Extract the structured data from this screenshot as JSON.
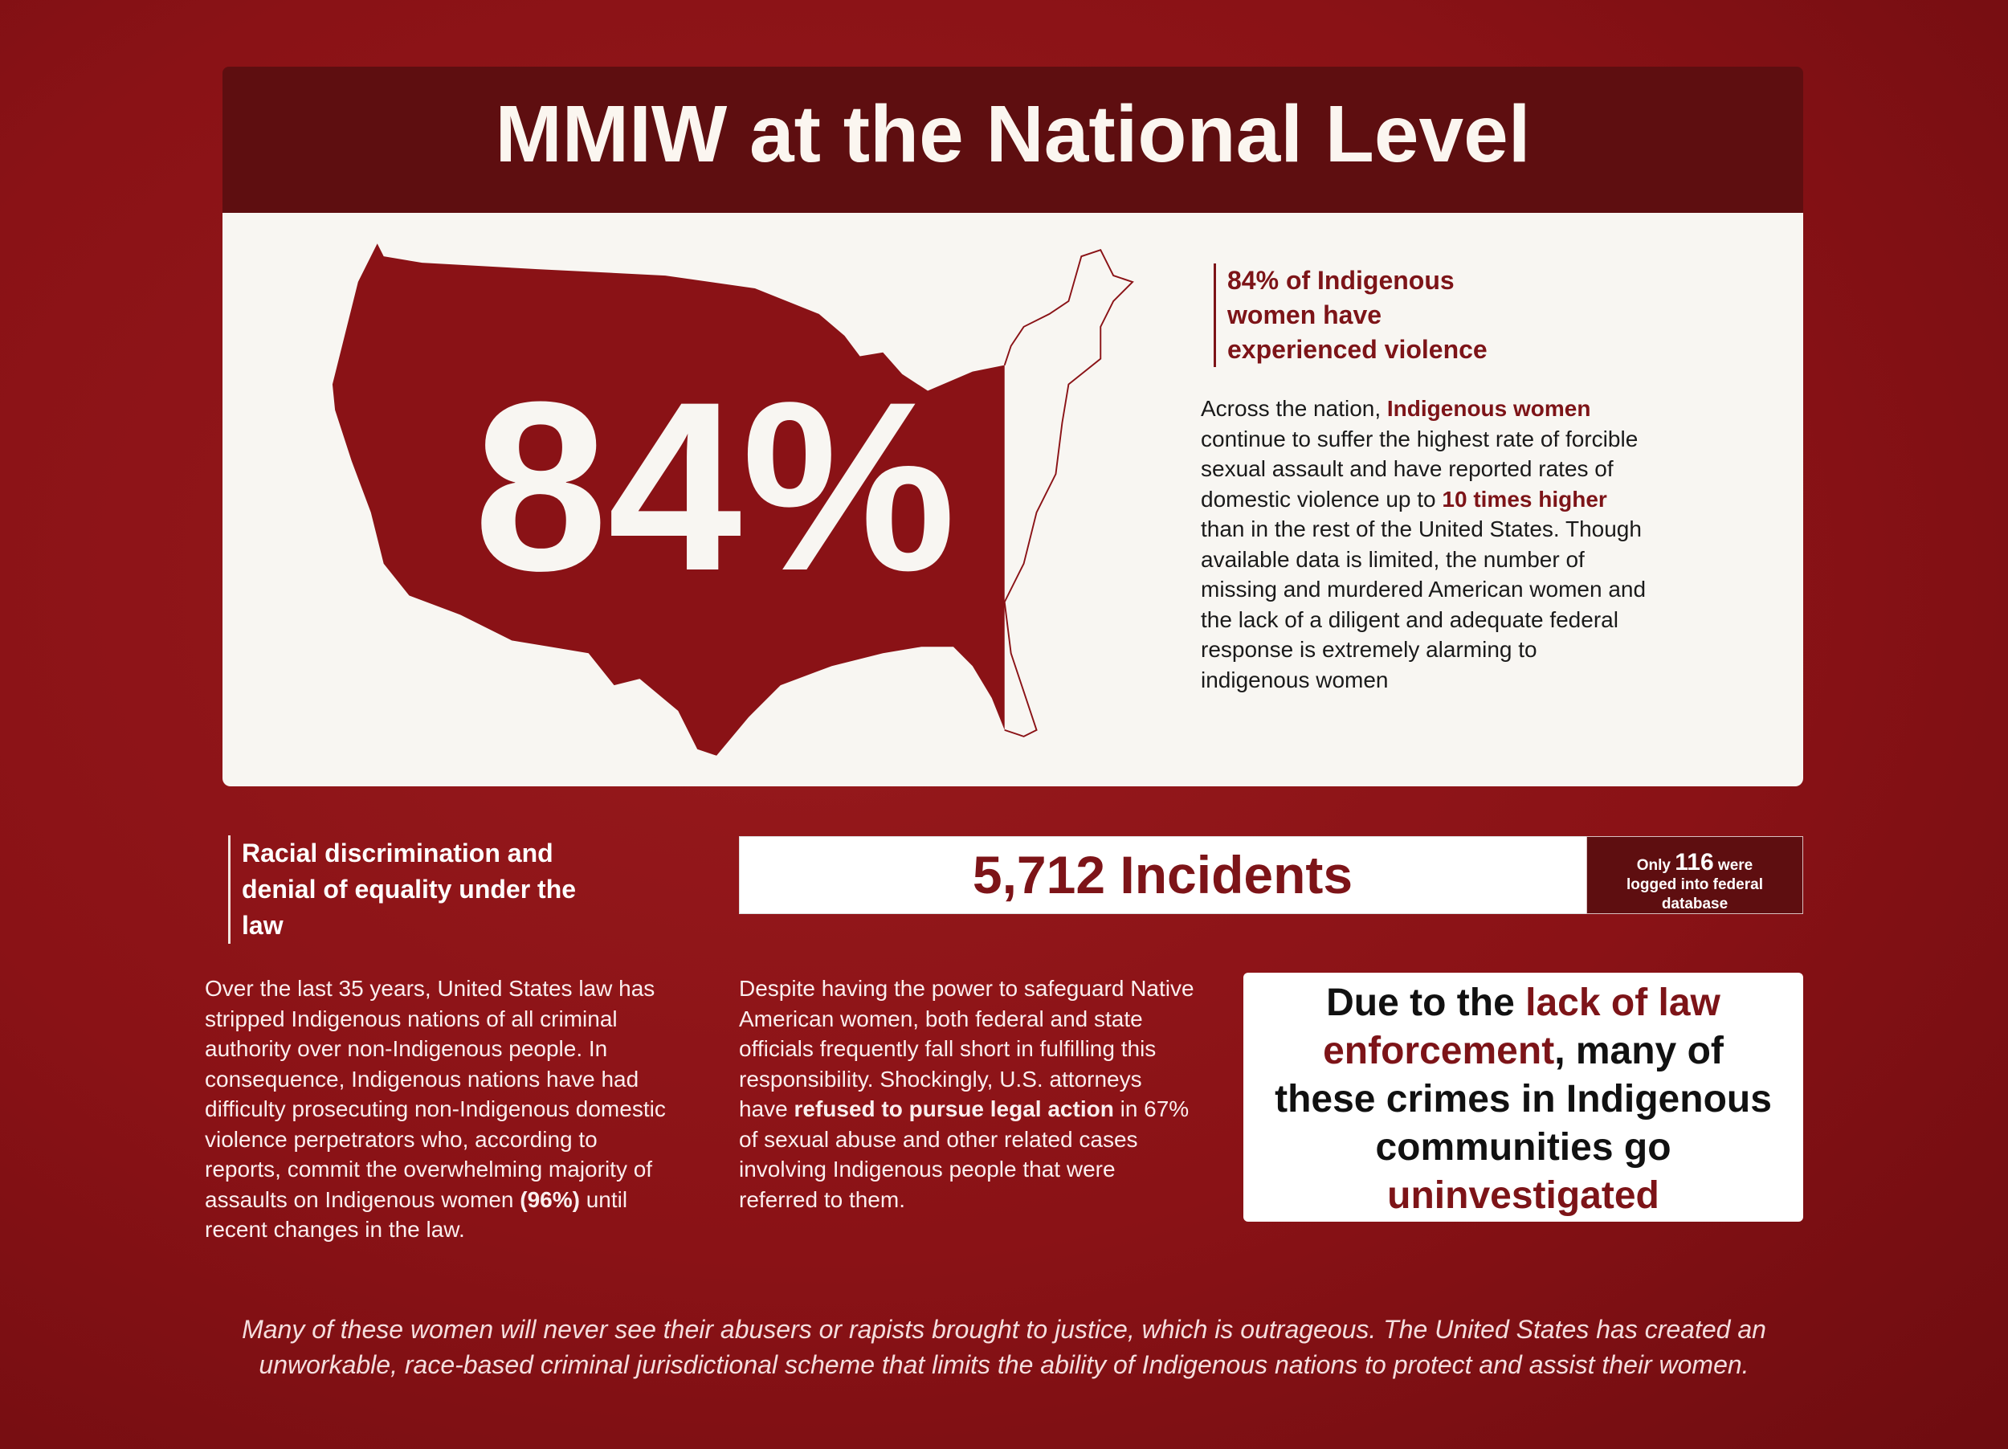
{
  "header": {
    "title": "MMIW at the National Level"
  },
  "intro": {
    "big_stat": "84%",
    "heading": "84% of Indigenous women have experienced violence",
    "body": [
      "Across the nation, ",
      "Indigenous women",
      " continue to suffer the highest rate of forcible sexual assault and have reported rates of domestic violence up to ",
      "10 times higher",
      " than in the rest of the United States. Though available data is limited, the number of missing and murdered American women and the lack of a diligent and adequate federal response is extremely alarming to indigenous women"
    ]
  },
  "discrimination": {
    "heading": "Racial discrimination and denial of equality under the law",
    "body": [
      "Over the last 35 years, United States law has stripped Indigenous nations of all criminal authority over non-Indigenous people. In consequence, Indigenous nations have had difficulty prosecuting non-Indigenous domestic violence perpetrators who, according to reports, commit the overwhelming majority of assaults on Indigenous women ",
      "(96%)",
      " until recent changes in the law."
    ]
  },
  "incidents": {
    "headline": "5,712 Incidents",
    "note": [
      "Only ",
      "116",
      " were logged into federal database"
    ]
  },
  "attorneys": {
    "body": [
      "Despite having the power to safeguard Native American women, both federal and state officials frequently fall short in fulfilling this responsibility. Shockingly, U.S. attorneys have ",
      "refused to pursue legal action",
      " in 67% of sexual abuse and other related cases involving Indigenous people that were referred to them."
    ]
  },
  "callout": {
    "text": [
      "Due to the ",
      "lack of law enforcement",
      ", many of these crimes in Indigenous communities go ",
      "uninvestigated"
    ]
  },
  "footer": {
    "text": "Many of these women will never see their abusers or rapists brought to justice, which is outrageous. The United States has created an unworkable, race-based criminal jurisdictional scheme that limits the ability of Indigenous nations to protect and assist their women."
  }
}
